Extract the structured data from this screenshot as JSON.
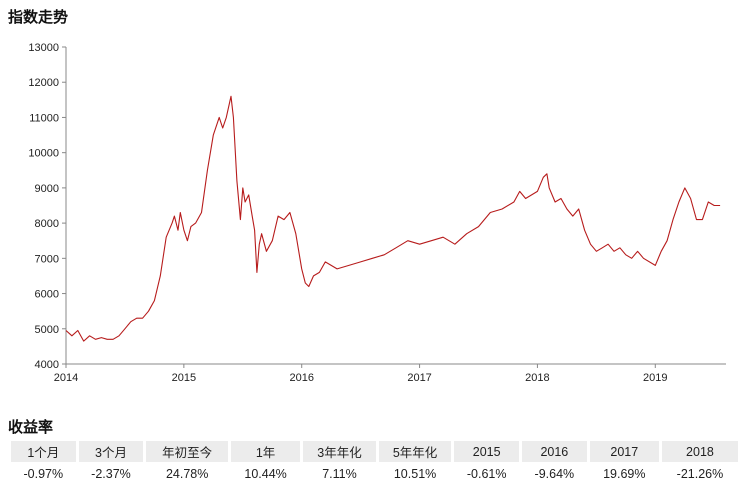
{
  "chart_title": "指数走势",
  "returns_title": "收益率",
  "colors": {
    "line": "#b71c1c",
    "axis": "#888888"
  },
  "chart_data": {
    "type": "line",
    "title": "指数走势",
    "xlabel": "",
    "ylabel": "",
    "x_ticks": [
      "2014",
      "2015",
      "2016",
      "2017",
      "2018",
      "2019"
    ],
    "y_ticks": [
      4000,
      5000,
      6000,
      7000,
      8000,
      9000,
      10000,
      11000,
      12000,
      13000
    ],
    "xlim": [
      2014.0,
      2019.6
    ],
    "ylim": [
      4000,
      13000
    ],
    "grid": false,
    "series": [
      {
        "x": [
          2014.0,
          2014.05,
          2014.1,
          2014.15,
          2014.2,
          2014.25,
          2014.3,
          2014.35,
          2014.4,
          2014.45,
          2014.5,
          2014.55,
          2014.6,
          2014.65,
          2014.7,
          2014.75,
          2014.8,
          2014.85,
          2014.9,
          2014.92,
          2014.95,
          2014.97,
          2015.0,
          2015.03,
          2015.06,
          2015.1,
          2015.15,
          2015.2,
          2015.25,
          2015.3,
          2015.33,
          2015.36,
          2015.4,
          2015.42,
          2015.45,
          2015.48,
          2015.5,
          2015.52,
          2015.55,
          2015.58,
          2015.6,
          2015.62,
          2015.64,
          2015.66,
          2015.7,
          2015.75,
          2015.8,
          2015.85,
          2015.9,
          2015.95,
          2016.0,
          2016.03,
          2016.06,
          2016.1,
          2016.15,
          2016.2,
          2016.3,
          2016.4,
          2016.5,
          2016.6,
          2016.7,
          2016.8,
          2016.9,
          2017.0,
          2017.1,
          2017.2,
          2017.3,
          2017.4,
          2017.5,
          2017.6,
          2017.7,
          2017.8,
          2017.85,
          2017.9,
          2018.0,
          2018.05,
          2018.08,
          2018.1,
          2018.15,
          2018.2,
          2018.25,
          2018.3,
          2018.35,
          2018.4,
          2018.45,
          2018.5,
          2018.55,
          2018.6,
          2018.65,
          2018.7,
          2018.75,
          2018.8,
          2018.85,
          2018.9,
          2019.0,
          2019.05,
          2019.1,
          2019.15,
          2019.2,
          2019.25,
          2019.3,
          2019.35,
          2019.4,
          2019.45,
          2019.5,
          2019.55
        ],
        "y": [
          4950,
          4800,
          4950,
          4650,
          4800,
          4700,
          4750,
          4700,
          4700,
          4800,
          5000,
          5200,
          5300,
          5300,
          5500,
          5800,
          6500,
          7600,
          8000,
          8200,
          7800,
          8300,
          7800,
          7500,
          7900,
          8000,
          8300,
          9500,
          10500,
          11000,
          10700,
          11000,
          11600,
          11000,
          9200,
          8100,
          9000,
          8600,
          8800,
          8200,
          7800,
          6600,
          7400,
          7700,
          7200,
          7500,
          8200,
          8100,
          8300,
          7700,
          6700,
          6300,
          6200,
          6500,
          6600,
          6900,
          6700,
          6800,
          6900,
          7000,
          7100,
          7300,
          7500,
          7400,
          7500,
          7600,
          7400,
          7700,
          7900,
          8300,
          8400,
          8600,
          8900,
          8700,
          8900,
          9300,
          9400,
          9000,
          8600,
          8700,
          8400,
          8200,
          8400,
          7800,
          7400,
          7200,
          7300,
          7400,
          7200,
          7300,
          7100,
          7000,
          7200,
          7000,
          6800,
          7200,
          7500,
          8100,
          8600,
          9000,
          8700,
          8100,
          8100,
          8600,
          8500,
          8500
        ]
      }
    ]
  },
  "returns_table": {
    "headers": [
      "1个月",
      "3个月",
      "年初至今",
      "1年",
      "3年年化",
      "5年年化",
      "2015",
      "2016",
      "2017",
      "2018"
    ],
    "values": [
      "-0.97%",
      "-2.37%",
      "24.78%",
      "10.44%",
      "7.11%",
      "10.51%",
      "-0.61%",
      "-9.64%",
      "19.69%",
      "-21.26%"
    ]
  }
}
